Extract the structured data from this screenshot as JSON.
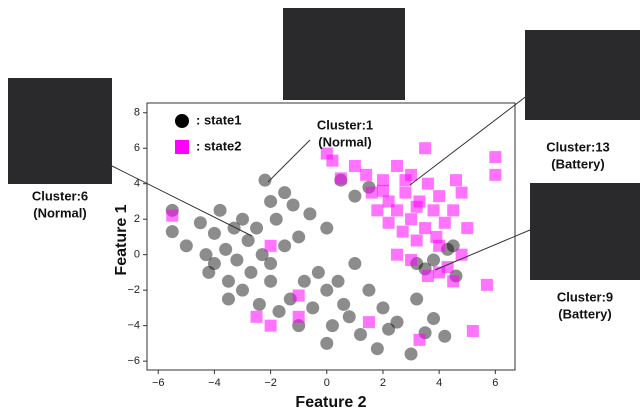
{
  "chart_data": {
    "type": "scatter",
    "xlabel": "Feature 2",
    "ylabel": "Feature 1",
    "xlim": [
      -6.4,
      6.7
    ],
    "ylim": [
      -6.5,
      8.55
    ],
    "xticks": [
      {
        "value": -6,
        "label": "−6"
      },
      {
        "value": -4,
        "label": "−4"
      },
      {
        "value": -2,
        "label": "−2"
      },
      0,
      2,
      4,
      6
    ],
    "yticks": [
      {
        "value": -6,
        "label": "−6"
      },
      {
        "value": -4,
        "label": "−4"
      },
      {
        "value": -2,
        "label": "−2"
      },
      0,
      2,
      4,
      6,
      8
    ],
    "series": [
      {
        "name": ": state1",
        "color": "#000000",
        "marker": "circle",
        "x": [
          -5.5,
          -5.5,
          -5,
          -4.5,
          -4.3,
          -4.2,
          -4,
          -4,
          -3.8,
          -3.6,
          -3.5,
          -3.3,
          -3.2,
          -3,
          -3,
          -2.8,
          -2.7,
          -2.5,
          -2.4,
          -2.3,
          -2.2,
          -2,
          -2,
          -1.8,
          -1.7,
          -1.5,
          -1.5,
          -1.3,
          -1.2,
          -1,
          -1,
          -0.8,
          -0.6,
          -0.5,
          -0.3,
          0,
          0,
          0,
          0.2,
          0.4,
          0.6,
          0.8,
          1,
          1.2,
          1.5,
          1.5,
          1.8,
          2,
          2.2,
          2.5,
          3,
          3.2,
          3.5,
          3.8,
          4.2,
          3.2,
          3.5,
          3.8,
          4.3,
          4.6,
          0.5,
          1,
          4.5,
          -3.5,
          -2
        ],
        "values": [
          2.5,
          1.3,
          0.5,
          1.8,
          0,
          -1,
          1.2,
          -0.5,
          2.5,
          0.3,
          -1.5,
          1.5,
          -0.3,
          2,
          -2,
          0.8,
          -1,
          1.5,
          -2.8,
          0,
          4.2,
          3,
          -1.5,
          2,
          -3.2,
          3.5,
          0.5,
          -2.5,
          2.8,
          1,
          -4,
          -1.5,
          2.3,
          -3,
          -1,
          -2,
          1.5,
          -5,
          -4,
          -1.5,
          -2.8,
          -3.5,
          -0.5,
          -4.5,
          -2,
          3.8,
          -5.3,
          -3,
          -4.2,
          -3.8,
          -5.6,
          -2.5,
          -4.4,
          -3.6,
          -4.6,
          -0.5,
          -0.8,
          -0.3,
          0.3,
          -1.2,
          4.2,
          3.3,
          0.5,
          -2.5,
          -0.5
        ]
      },
      {
        "name": ": state2",
        "color": "#ff00ff",
        "marker": "square",
        "x": [
          0.2,
          0.5,
          1,
          1.4,
          1.6,
          1.8,
          2,
          2.2,
          2.2,
          2.5,
          2.5,
          2.7,
          2.8,
          3,
          3,
          3.2,
          3.3,
          3.5,
          3.6,
          3.8,
          4,
          4,
          4.2,
          4.3,
          4.5,
          4.5,
          4.8,
          5,
          2.5,
          3,
          3.6,
          4,
          4.8,
          2,
          2.8,
          3.9,
          4.6,
          3.2,
          -2.5,
          -2,
          -1,
          -1,
          -5.5,
          -2,
          0,
          1.5,
          3.3,
          5.2,
          5.7,
          3.5,
          6,
          6
        ],
        "values": [
          5.3,
          4.3,
          5,
          4.5,
          3.5,
          2.5,
          4.2,
          3,
          1.8,
          5,
          2.5,
          1.3,
          3.5,
          4.5,
          2,
          0.8,
          3,
          1.5,
          4,
          2.5,
          0.5,
          3.3,
          1.8,
          -0.7,
          2.5,
          -1.5,
          3.5,
          1.5,
          0,
          -0.3,
          -1.2,
          -1,
          0,
          3.6,
          4.2,
          1,
          4.2,
          2.7,
          -3.5,
          -4,
          -3.5,
          -2.3,
          2.2,
          0.5,
          5.7,
          -3.8,
          -4.8,
          -4.3,
          -1.7,
          6,
          4.5,
          5.5
        ]
      }
    ],
    "annotations": [
      {
        "label": "Cluster:6",
        "note": "(Normal)"
      },
      {
        "label": "Cluster:1",
        "note": "(Normal)"
      },
      {
        "label": "Cluster:13",
        "note": "(Battery)"
      },
      {
        "label": "Cluster:9",
        "note": "(Battery)"
      }
    ]
  }
}
